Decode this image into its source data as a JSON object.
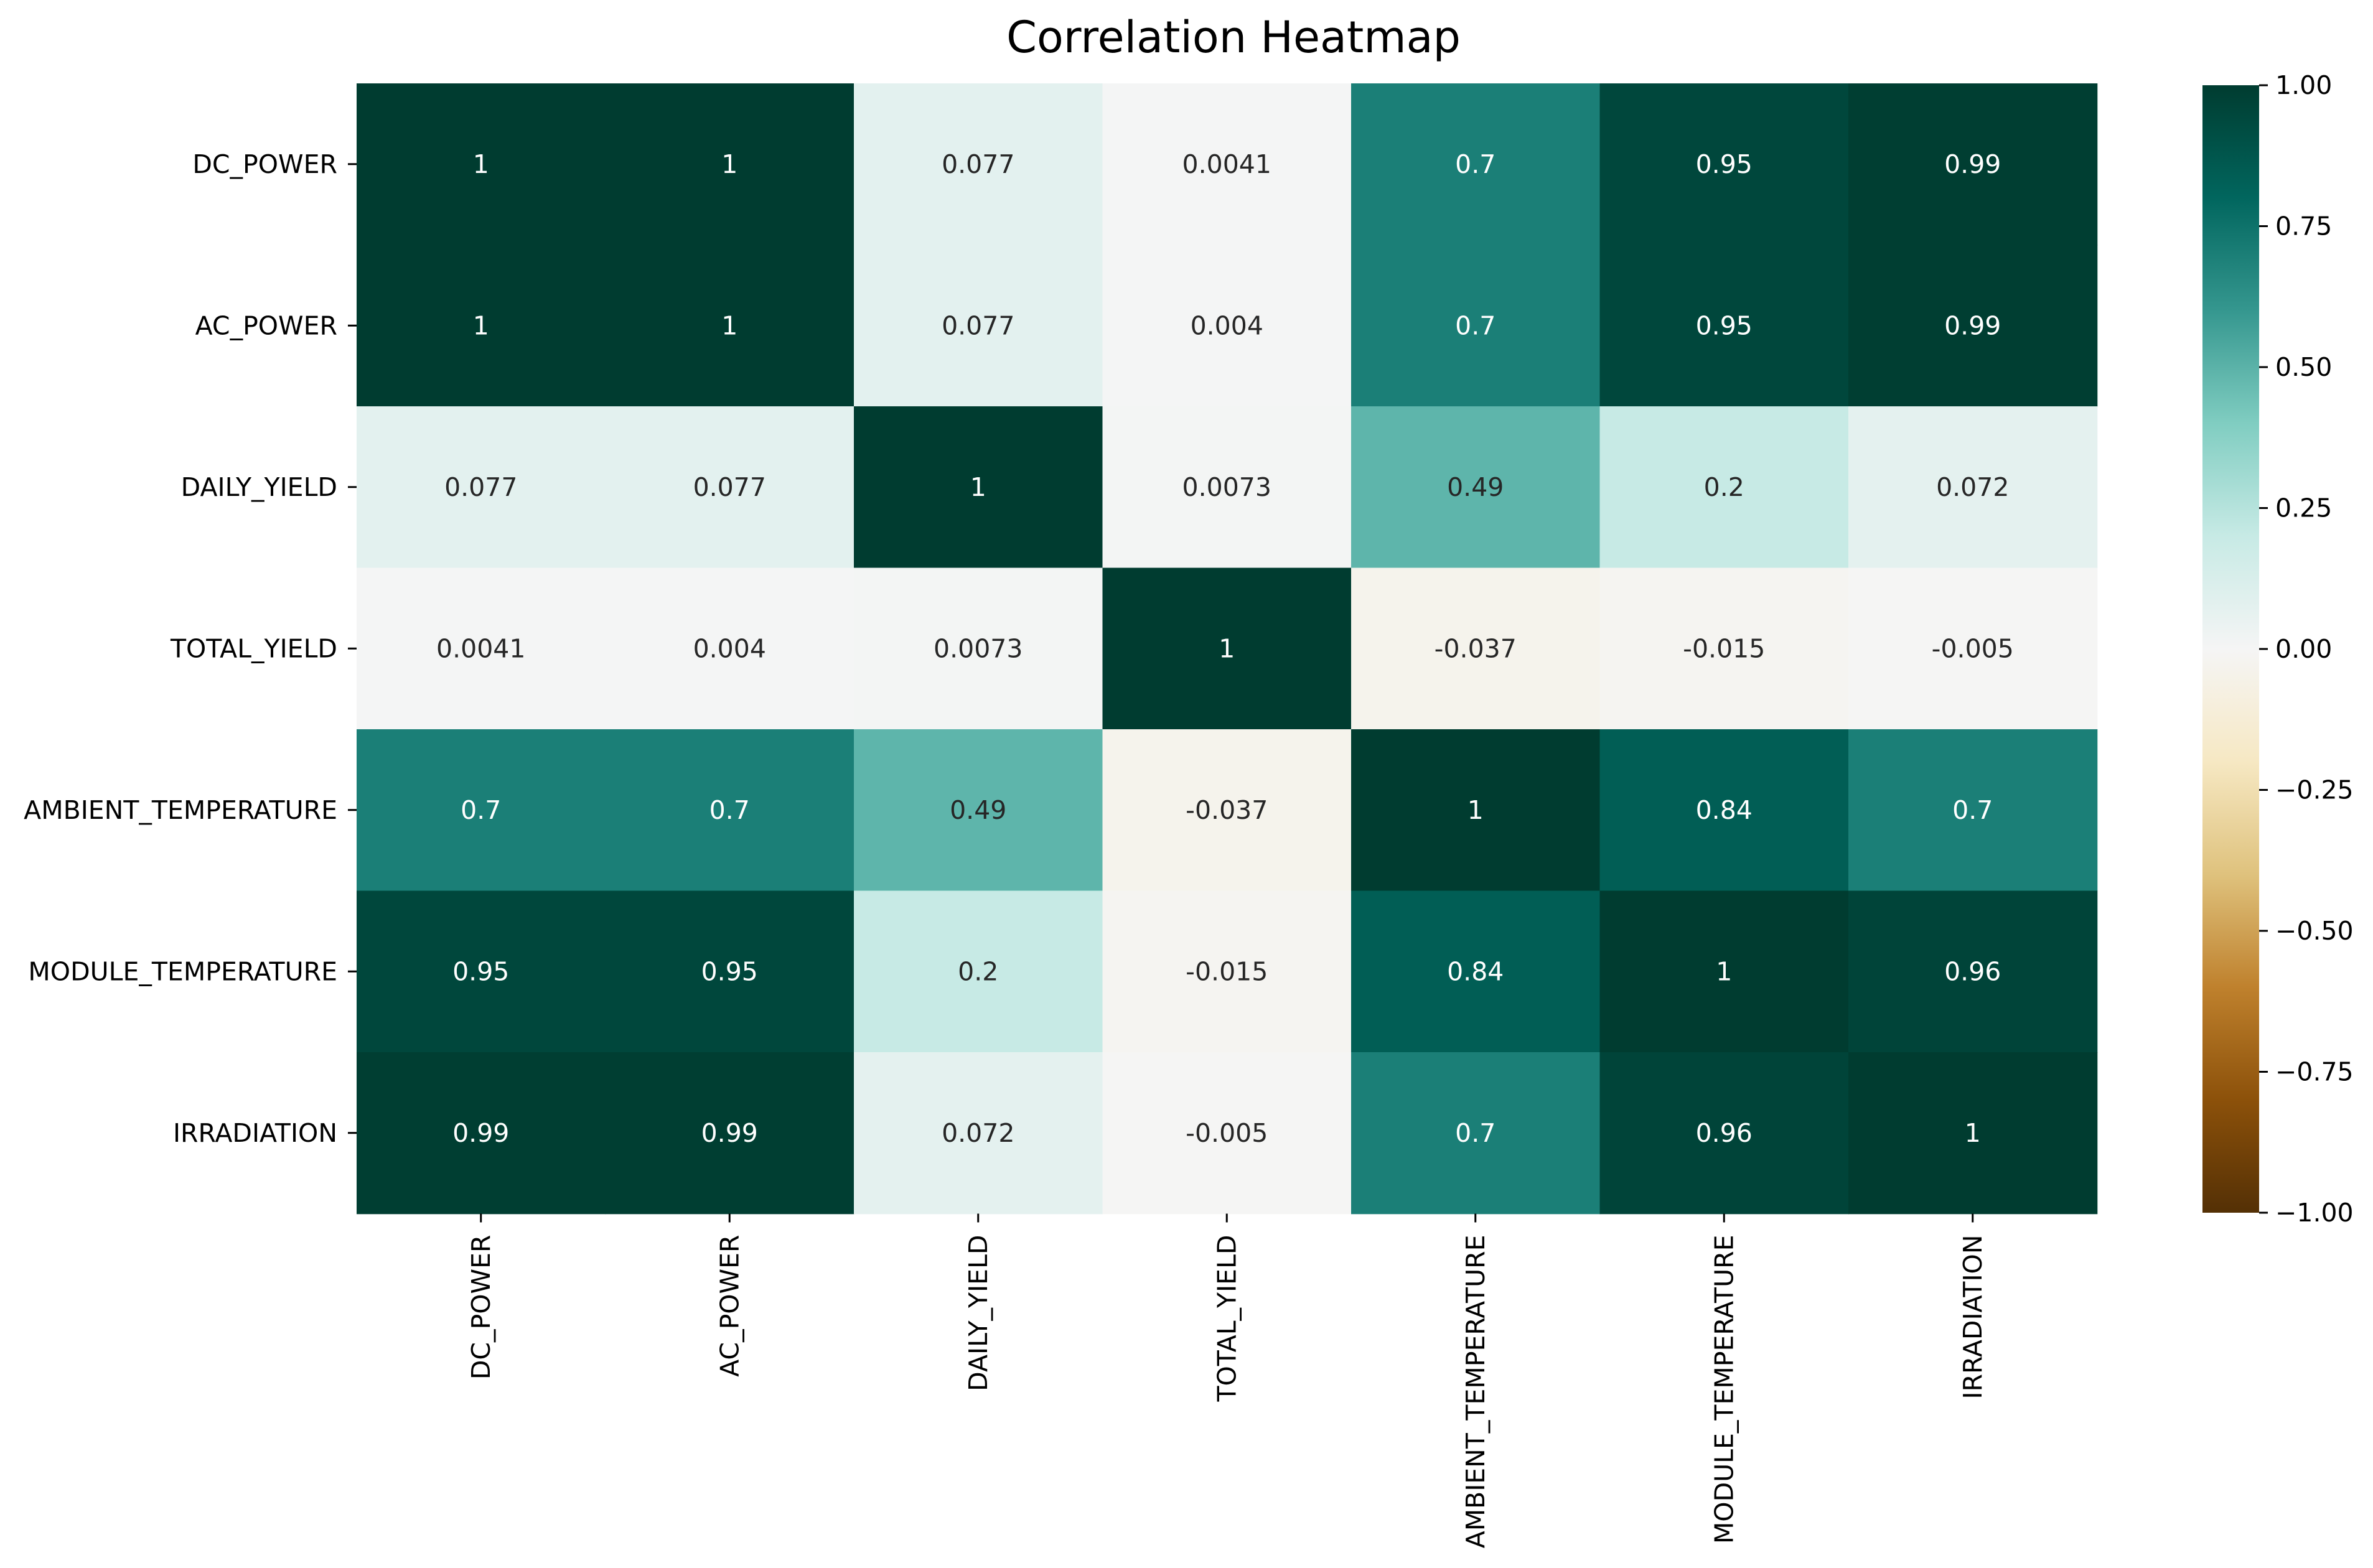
{
  "chart_data": {
    "type": "heatmap",
    "title": "Correlation Heatmap",
    "xlabel": "",
    "ylabel": "",
    "x": [
      "DC_POWER",
      "AC_POWER",
      "DAILY_YIELD",
      "TOTAL_YIELD",
      "AMBIENT_TEMPERATURE",
      "MODULE_TEMPERATURE",
      "IRRADIATION"
    ],
    "y": [
      "DC_POWER",
      "AC_POWER",
      "DAILY_YIELD",
      "TOTAL_YIELD",
      "AMBIENT_TEMPERATURE",
      "MODULE_TEMPERATURE",
      "IRRADIATION"
    ],
    "values": [
      [
        1,
        1,
        0.077,
        0.0041,
        0.7,
        0.95,
        0.99
      ],
      [
        1,
        1,
        0.077,
        0.004,
        0.7,
        0.95,
        0.99
      ],
      [
        0.077,
        0.077,
        1,
        0.0073,
        0.49,
        0.2,
        0.072
      ],
      [
        0.0041,
        0.004,
        0.0073,
        1,
        -0.037,
        -0.015,
        -0.005
      ],
      [
        0.7,
        0.7,
        0.49,
        -0.037,
        1,
        0.84,
        0.7
      ],
      [
        0.95,
        0.95,
        0.2,
        -0.015,
        0.84,
        1,
        0.96
      ],
      [
        0.99,
        0.99,
        0.072,
        -0.005,
        0.7,
        0.96,
        1
      ]
    ],
    "annotations": [
      [
        "1",
        "1",
        "0.077",
        "0.0041",
        "0.7",
        "0.95",
        "0.99"
      ],
      [
        "1",
        "1",
        "0.077",
        "0.004",
        "0.7",
        "0.95",
        "0.99"
      ],
      [
        "0.077",
        "0.077",
        "1",
        "0.0073",
        "0.49",
        "0.2",
        "0.072"
      ],
      [
        "0.0041",
        "0.004",
        "0.0073",
        "1",
        "-0.037",
        "-0.015",
        "-0.005"
      ],
      [
        "0.7",
        "0.7",
        "0.49",
        "-0.037",
        "1",
        "0.84",
        "0.7"
      ],
      [
        "0.95",
        "0.95",
        "0.2",
        "-0.015",
        "0.84",
        "1",
        "0.96"
      ],
      [
        "0.99",
        "0.99",
        "0.072",
        "-0.005",
        "0.7",
        "0.96",
        "1"
      ]
    ],
    "colormap": "BrBG",
    "vmin": -1,
    "vmax": 1,
    "colorbar_ticks": [
      "1.00",
      "0.75",
      "0.50",
      "0.25",
      "0.00",
      "−0.25",
      "−0.50",
      "−0.75",
      "−1.00"
    ],
    "colorbar_tick_values": [
      1,
      0.75,
      0.5,
      0.25,
      0,
      -0.25,
      -0.5,
      -0.75,
      -1
    ],
    "colormap_stops": [
      {
        "v": -1.0,
        "color": "#543005"
      },
      {
        "v": -0.8,
        "color": "#8c510a"
      },
      {
        "v": -0.6,
        "color": "#bf812d"
      },
      {
        "v": -0.4,
        "color": "#dfc27d"
      },
      {
        "v": -0.2,
        "color": "#f6e8c3"
      },
      {
        "v": 0.0,
        "color": "#f5f5f5"
      },
      {
        "v": 0.2,
        "color": "#c7eae5"
      },
      {
        "v": 0.4,
        "color": "#80cdc1"
      },
      {
        "v": 0.6,
        "color": "#35978f"
      },
      {
        "v": 0.8,
        "color": "#01665e"
      },
      {
        "v": 1.0,
        "color": "#003c30"
      }
    ]
  }
}
